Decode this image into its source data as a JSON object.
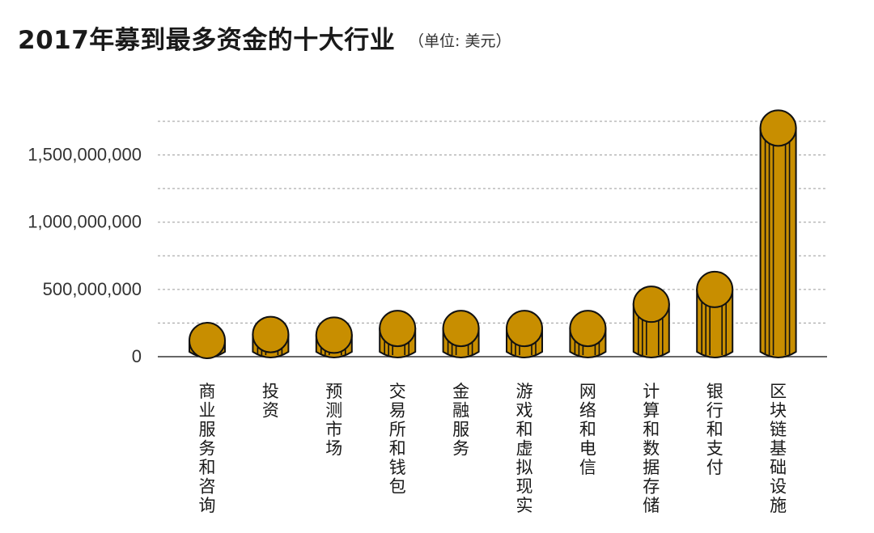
{
  "header": {
    "title": "2017年募到最多资金的十大行业",
    "unit": "（单位: 美元）"
  },
  "colors": {
    "bar_fill": "#c88e00",
    "bar_stroke": "#111111",
    "grid": "#9a9a9a",
    "axis": "#333333"
  },
  "chart_data": {
    "type": "bar",
    "title": "2017年募到最多资金的十大行业",
    "subtitle": "（单位: 美元）",
    "xlabel": "",
    "ylabel": "",
    "categories": [
      "商业服务和咨询",
      "投资",
      "预测市场",
      "交易所和钱包",
      "金融服务",
      "游戏和虚拟现实",
      "网络和电信",
      "计算和数据存储",
      "银行和支付",
      "区块链基础设施"
    ],
    "values": [
      120000000,
      165000000,
      160000000,
      210000000,
      210000000,
      210000000,
      210000000,
      390000000,
      500000000,
      1700000000
    ],
    "ylim": [
      0,
      1750000000
    ],
    "yticks": [
      0,
      500000000,
      1000000000,
      1500000000
    ],
    "ytick_labels": [
      "0",
      "500,000,000",
      "1,000,000,000",
      "1,500,000,000"
    ],
    "grid": true,
    "grid_step": 250000000,
    "legend": "none"
  }
}
